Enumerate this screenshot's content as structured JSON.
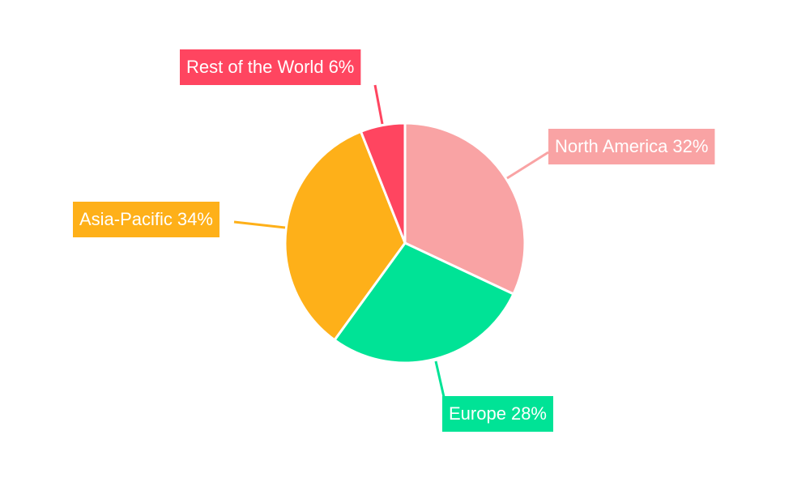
{
  "chart_data": {
    "type": "pie",
    "categories": [
      "North America",
      "Europe",
      "Asia-Pacific",
      "Rest of the World"
    ],
    "values": [
      32,
      28,
      34,
      6
    ],
    "value_labels": [
      "32%",
      "28%",
      "34%",
      "6%"
    ],
    "colors": [
      "#f9a3a4",
      "#00e396",
      "#feb019",
      "#ff4560"
    ]
  }
}
